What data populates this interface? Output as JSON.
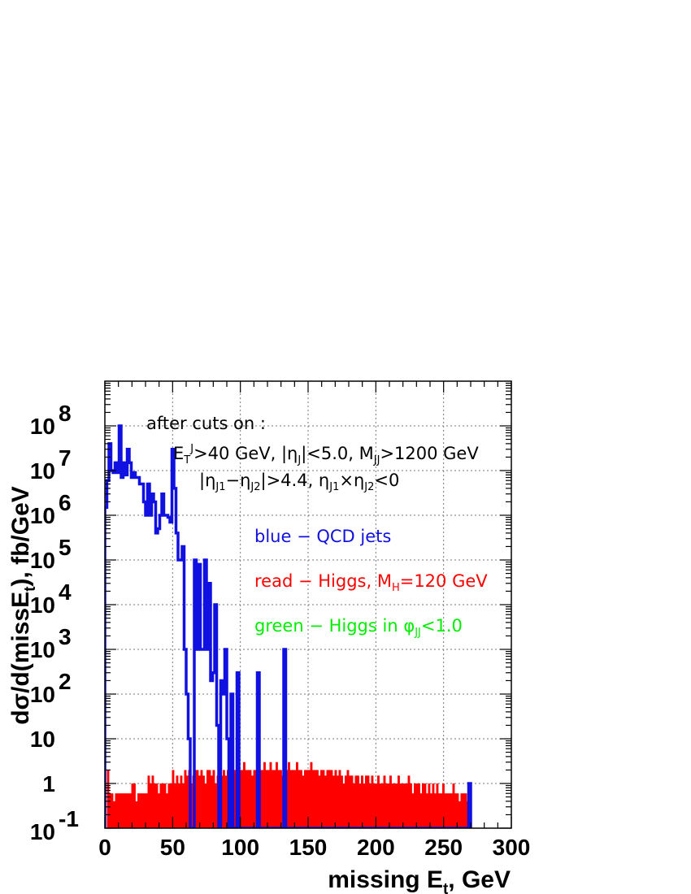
{
  "chart_data": {
    "type": "histogram",
    "title": "",
    "xlabel": "missing E_t, GeV",
    "ylabel": "dσ/d(missE_t), fb/GeV",
    "x_scale": "linear",
    "y_scale": "log",
    "xlim": [
      0,
      300
    ],
    "ylim": [
      0.1,
      1000000000
    ],
    "grid": true,
    "x_ticks": [
      {
        "value": 0,
        "label": "0"
      },
      {
        "value": 50,
        "label": "50"
      },
      {
        "value": 100,
        "label": "100"
      },
      {
        "value": 150,
        "label": "150"
      },
      {
        "value": 200,
        "label": "200"
      },
      {
        "value": 250,
        "label": "250"
      },
      {
        "value": 300,
        "label": "300"
      }
    ],
    "y_ticks": [
      {
        "value": 0.1,
        "base": "10",
        "exp": "-1"
      },
      {
        "value": 1,
        "base": "1",
        "exp": ""
      },
      {
        "value": 10,
        "base": "10",
        "exp": ""
      },
      {
        "value": 100,
        "base": "10",
        "exp": "2"
      },
      {
        "value": 1000,
        "base": "10",
        "exp": "3"
      },
      {
        "value": 10000,
        "base": "10",
        "exp": "4"
      },
      {
        "value": 100000,
        "base": "10",
        "exp": "5"
      },
      {
        "value": 1000000,
        "base": "10",
        "exp": "6"
      },
      {
        "value": 10000000,
        "base": "10",
        "exp": "7"
      },
      {
        "value": 100000000,
        "base": "10",
        "exp": "8"
      }
    ],
    "annotations": [
      {
        "text": "after cuts on :",
        "color": "#000000"
      },
      {
        "text": "E_T^J>40 GeV, |η_J|<5.0, M_JJ>1200 GeV",
        "color": "#000000"
      },
      {
        "text": "|η_J1−η_J2|>4.4, η_J1×η_J2<0",
        "color": "#000000"
      },
      {
        "text": "blue − QCD jets",
        "color": "#1010e0"
      },
      {
        "text": "read − Higgs, M_H=120 GeV",
        "color": "#ff0000"
      },
      {
        "text": "green − Higgs in φ_JJ<1.0",
        "color": "#00ee00"
      }
    ],
    "bin_width": 1.5,
    "series": [
      {
        "color": "#ff0000",
        "style": "filled",
        "values": [
          0.1,
          2.0,
          0.6,
          0.6,
          0.4,
          0.6,
          0.6,
          0.6,
          0.6,
          0.6,
          0.6,
          0.6,
          0.6,
          1.0,
          1.0,
          0.4,
          0.6,
          0.6,
          0.6,
          0.6,
          0.6,
          1.5,
          1.0,
          1.5,
          1.0,
          1.0,
          0.6,
          1.0,
          1.0,
          1.0,
          0.6,
          1.0,
          1.0,
          2.0,
          1.0,
          1.5,
          1.0,
          1.5,
          1.0,
          2.0,
          1.5,
          2.0,
          1.0,
          1.5,
          2.0,
          2.0,
          1.5,
          2.0,
          1.5,
          1.0,
          2.0,
          2.0,
          1.5,
          2.0,
          1.0,
          1.5,
          2.0,
          1.5,
          2.0,
          1.5,
          2.0,
          2.0,
          1.5,
          2.0,
          2.0,
          3.0,
          2.0,
          2.0,
          3.0,
          2.0,
          2.0,
          2.0,
          1.5,
          2.0,
          2.0,
          3.0,
          2.0,
          2.0,
          3.0,
          2.0,
          2.0,
          3.0,
          2.0,
          2.0,
          3.0,
          2.0,
          2.0,
          1.5,
          2.0,
          2.0,
          3.0,
          2.0,
          2.0,
          2.0,
          3.0,
          2.0,
          2.0,
          1.5,
          2.0,
          2.0,
          2.0,
          3.0,
          2.0,
          2.0,
          2.0,
          1.5,
          2.0,
          2.0,
          1.5,
          2.0,
          2.0,
          2.0,
          1.5,
          2.0,
          1.5,
          2.0,
          1.5,
          1.0,
          1.5,
          2.0,
          1.5,
          1.5,
          1.0,
          1.5,
          1.5,
          1.0,
          1.5,
          1.0,
          1.5,
          1.5,
          1.0,
          1.5,
          1.0,
          1.0,
          1.5,
          1.0,
          1.0,
          1.5,
          1.0,
          1.0,
          1.5,
          1.0,
          1.0,
          1.0,
          1.5,
          1.0,
          1.0,
          1.0,
          1.0,
          1.5,
          1.0,
          0.6,
          1.0,
          1.0,
          1.0,
          0.6,
          1.0,
          1.0,
          0.6,
          1.0,
          0.6,
          1.0,
          0.6,
          1.0,
          0.6,
          0.6,
          1.0,
          0.6,
          0.6,
          0.6,
          0.6,
          1.0,
          0.6,
          0.6,
          0.4,
          0.6,
          0.6,
          0.6,
          0.4,
          0.6
        ]
      },
      {
        "color": "#00ee00",
        "style": "filled",
        "values": [
          0.1,
          0.1,
          0.1,
          0.1,
          0.1,
          0.1,
          0.1,
          0.1,
          0.1,
          0.1,
          0.1,
          0.1,
          0.1,
          0.1,
          0.1,
          0.1,
          0.1,
          0.1,
          0.1,
          0.1,
          0.1,
          0.1,
          0.1,
          0.1,
          0.1,
          0.1,
          0.1,
          0.1,
          0.1,
          0.1,
          0.1,
          0.1,
          0.1,
          0.1,
          0.1,
          0.1,
          0.1,
          0.1,
          0.1,
          0.1,
          0.1,
          0.1,
          0.1,
          0.1,
          0.1,
          0.1,
          0.1,
          0.1,
          0.1,
          0.1,
          0.1,
          0.1,
          0.1,
          0.1,
          0.1,
          0.1,
          0.1,
          0.1,
          0.1,
          0.1,
          0.1,
          0.1,
          0.1,
          0.1,
          0.1,
          0.1,
          0.1,
          0.1,
          0.1,
          0.1,
          0.1,
          0.1,
          0.1,
          0.1,
          0.1,
          0.1,
          0.1,
          0.1,
          0.1,
          0.1,
          0.1,
          0.1,
          0.1,
          0.1,
          0.1,
          0.1,
          0.1,
          0.1,
          0.1,
          0.1,
          0.1,
          0.1,
          0.1,
          0.1,
          0.1,
          0.1,
          0.1,
          0.1,
          0.1,
          0.1,
          0.1,
          0.1,
          0.1,
          0.1,
          0.1,
          0.1,
          0.1,
          0.1,
          0.1,
          0.1,
          0.1,
          0.1,
          0.1,
          0.1,
          0.1,
          0.1,
          0.1,
          0.1,
          0.1,
          0.1,
          0.1,
          0.1,
          0.1,
          0.1,
          0.1,
          0.1,
          0.1,
          0.1,
          0.1,
          0.1,
          0.1,
          0.1,
          0.1,
          0.1,
          0.1,
          0.1,
          0.1,
          0.1,
          0.1,
          0.1,
          0.1,
          0.1,
          0.1,
          0.1,
          0.1,
          0.1,
          0.1,
          0.1,
          0.1,
          0.1,
          0.1,
          0.1,
          0.1,
          0.1,
          0.1,
          0.1,
          0.1,
          0.1,
          0.1,
          0.1,
          0.1,
          0.1,
          0.1,
          0.1,
          0.1,
          0.1,
          0.1,
          0.1,
          0.1,
          0.1,
          0.1,
          0.1,
          0.1,
          0.1,
          0.1,
          0.1,
          0.1,
          0.1,
          0.1,
          0.1
        ]
      },
      {
        "color": "#1010e0",
        "style": "outline",
        "values": [
          1500000,
          6000000,
          40000000,
          10000000,
          9000000,
          15000000,
          9000000,
          100000000,
          7000000,
          15000000,
          8000000,
          30000000,
          15000000,
          7000000,
          9000000,
          7000000,
          7000000,
          5000000,
          5000000,
          2000000,
          1000000,
          5000000,
          1000000,
          3000000,
          2000000,
          400000,
          500000,
          1000000,
          3000000,
          1000000,
          1000000,
          900000,
          700000,
          30000000,
          4000000,
          400000,
          100000,
          100000,
          200000,
          1000,
          100,
          10,
          0.1,
          0.1,
          100000,
          1000,
          80000,
          1000,
          1000,
          100000,
          1000,
          30000,
          200,
          300,
          10000,
          20,
          0.1,
          200,
          100,
          1000,
          10,
          0.1,
          100,
          0.1,
          0.1,
          300,
          0.1,
          0.1,
          0.1,
          0.1,
          0.1,
          0.1,
          0.1,
          0.1,
          0.1,
          300,
          0.1,
          0.1,
          0.1,
          0.1,
          0.1,
          0.1,
          0.1,
          0.1,
          0.1,
          0.1,
          0.1,
          0.1,
          1000,
          0.1,
          0.1,
          0.1,
          0.1,
          0.1,
          0.1,
          0.1,
          0.1,
          0.1,
          0.1,
          0.1,
          0.1,
          0.1,
          0.1,
          0.1,
          0.1,
          0.1,
          0.1,
          0.1,
          0.1,
          0.1,
          0.1,
          0.1,
          0.1,
          0.1,
          0.1,
          0.1,
          0.1,
          0.1,
          0.1,
          0.1,
          0.1,
          0.1,
          0.1,
          0.1,
          0.1,
          0.1,
          0.1,
          0.1,
          0.1,
          0.1,
          0.1,
          0.1,
          0.1,
          0.1,
          0.1,
          0.1,
          0.1,
          0.1,
          0.1,
          0.1,
          0.1,
          0.1,
          0.1,
          0.1,
          0.1,
          0.1,
          0.1,
          0.1,
          0.1,
          0.1,
          0.1,
          0.1,
          0.1,
          0.1,
          0.1,
          0.1,
          0.1,
          0.1,
          0.1,
          0.1,
          0.1,
          0.1,
          0.1,
          0.1,
          0.1,
          0.1,
          0.1,
          0.1,
          0.1,
          0.1,
          0.1,
          0.1,
          0.1,
          0.1,
          0.1,
          0.1,
          0.1,
          0.1,
          0.1,
          1
        ]
      }
    ]
  }
}
